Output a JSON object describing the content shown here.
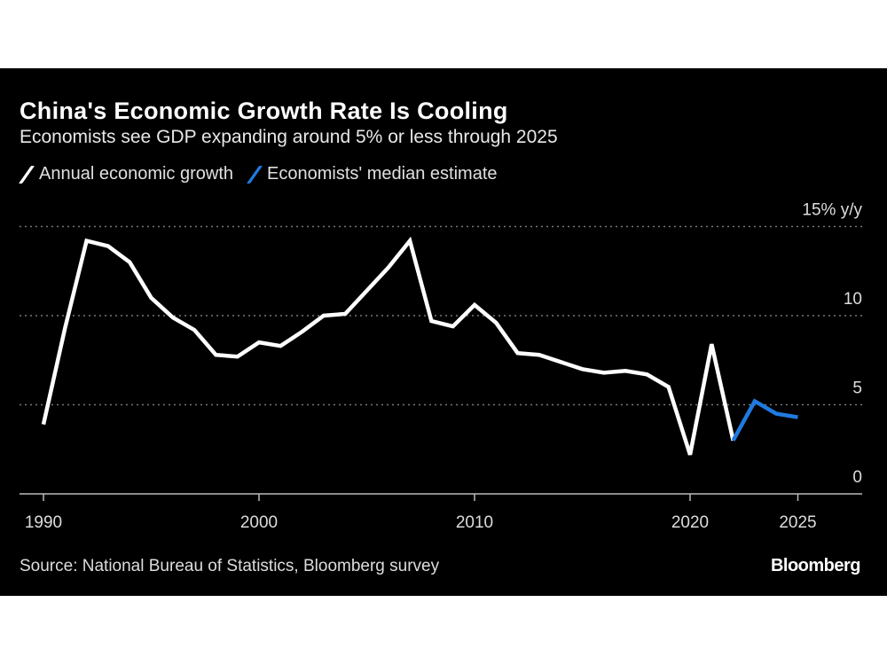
{
  "chart_data": {
    "type": "line",
    "title": "China's Economic Growth Rate Is Cooling",
    "subtitle": "Economists see GDP expanding around 5% or less through 2025",
    "ylabel_unit": "15% y/y",
    "ylim": [
      0,
      15
    ],
    "yticks": [
      0,
      5,
      10,
      15
    ],
    "ytick_labels": [
      "0",
      "5",
      "10",
      "15% y/y"
    ],
    "xlim": [
      1989.5,
      2028
    ],
    "xticks": [
      1990,
      2000,
      2010,
      2020,
      2025
    ],
    "xtick_labels": [
      "1990",
      "2000",
      "2010",
      "2020",
      "2025"
    ],
    "grid": true,
    "legend_position": "top-left",
    "series": [
      {
        "name": "Annual economic growth",
        "color": "#ffffff",
        "x": [
          1990,
          1991,
          1992,
          1993,
          1994,
          1995,
          1996,
          1997,
          1998,
          1999,
          2000,
          2001,
          2002,
          2003,
          2004,
          2005,
          2006,
          2007,
          2008,
          2009,
          2010,
          2011,
          2012,
          2013,
          2014,
          2015,
          2016,
          2017,
          2018,
          2019,
          2020,
          2021,
          2022
        ],
        "values": [
          3.9,
          9.3,
          14.2,
          13.9,
          13.0,
          11.0,
          9.9,
          9.2,
          7.8,
          7.7,
          8.5,
          8.3,
          9.1,
          10.0,
          10.1,
          11.4,
          12.7,
          14.2,
          9.7,
          9.4,
          10.6,
          9.6,
          7.9,
          7.8,
          7.4,
          7.0,
          6.8,
          6.9,
          6.7,
          6.0,
          2.2,
          8.4,
          3.0
        ]
      },
      {
        "name": "Economists' median estimate",
        "color": "#1f7ae0",
        "x": [
          2022,
          2023,
          2024,
          2025
        ],
        "values": [
          3.0,
          5.2,
          4.5,
          4.3
        ]
      }
    ]
  },
  "source": "Source: National Bureau of Statistics, Bloomberg survey",
  "logo": "Bloomberg"
}
